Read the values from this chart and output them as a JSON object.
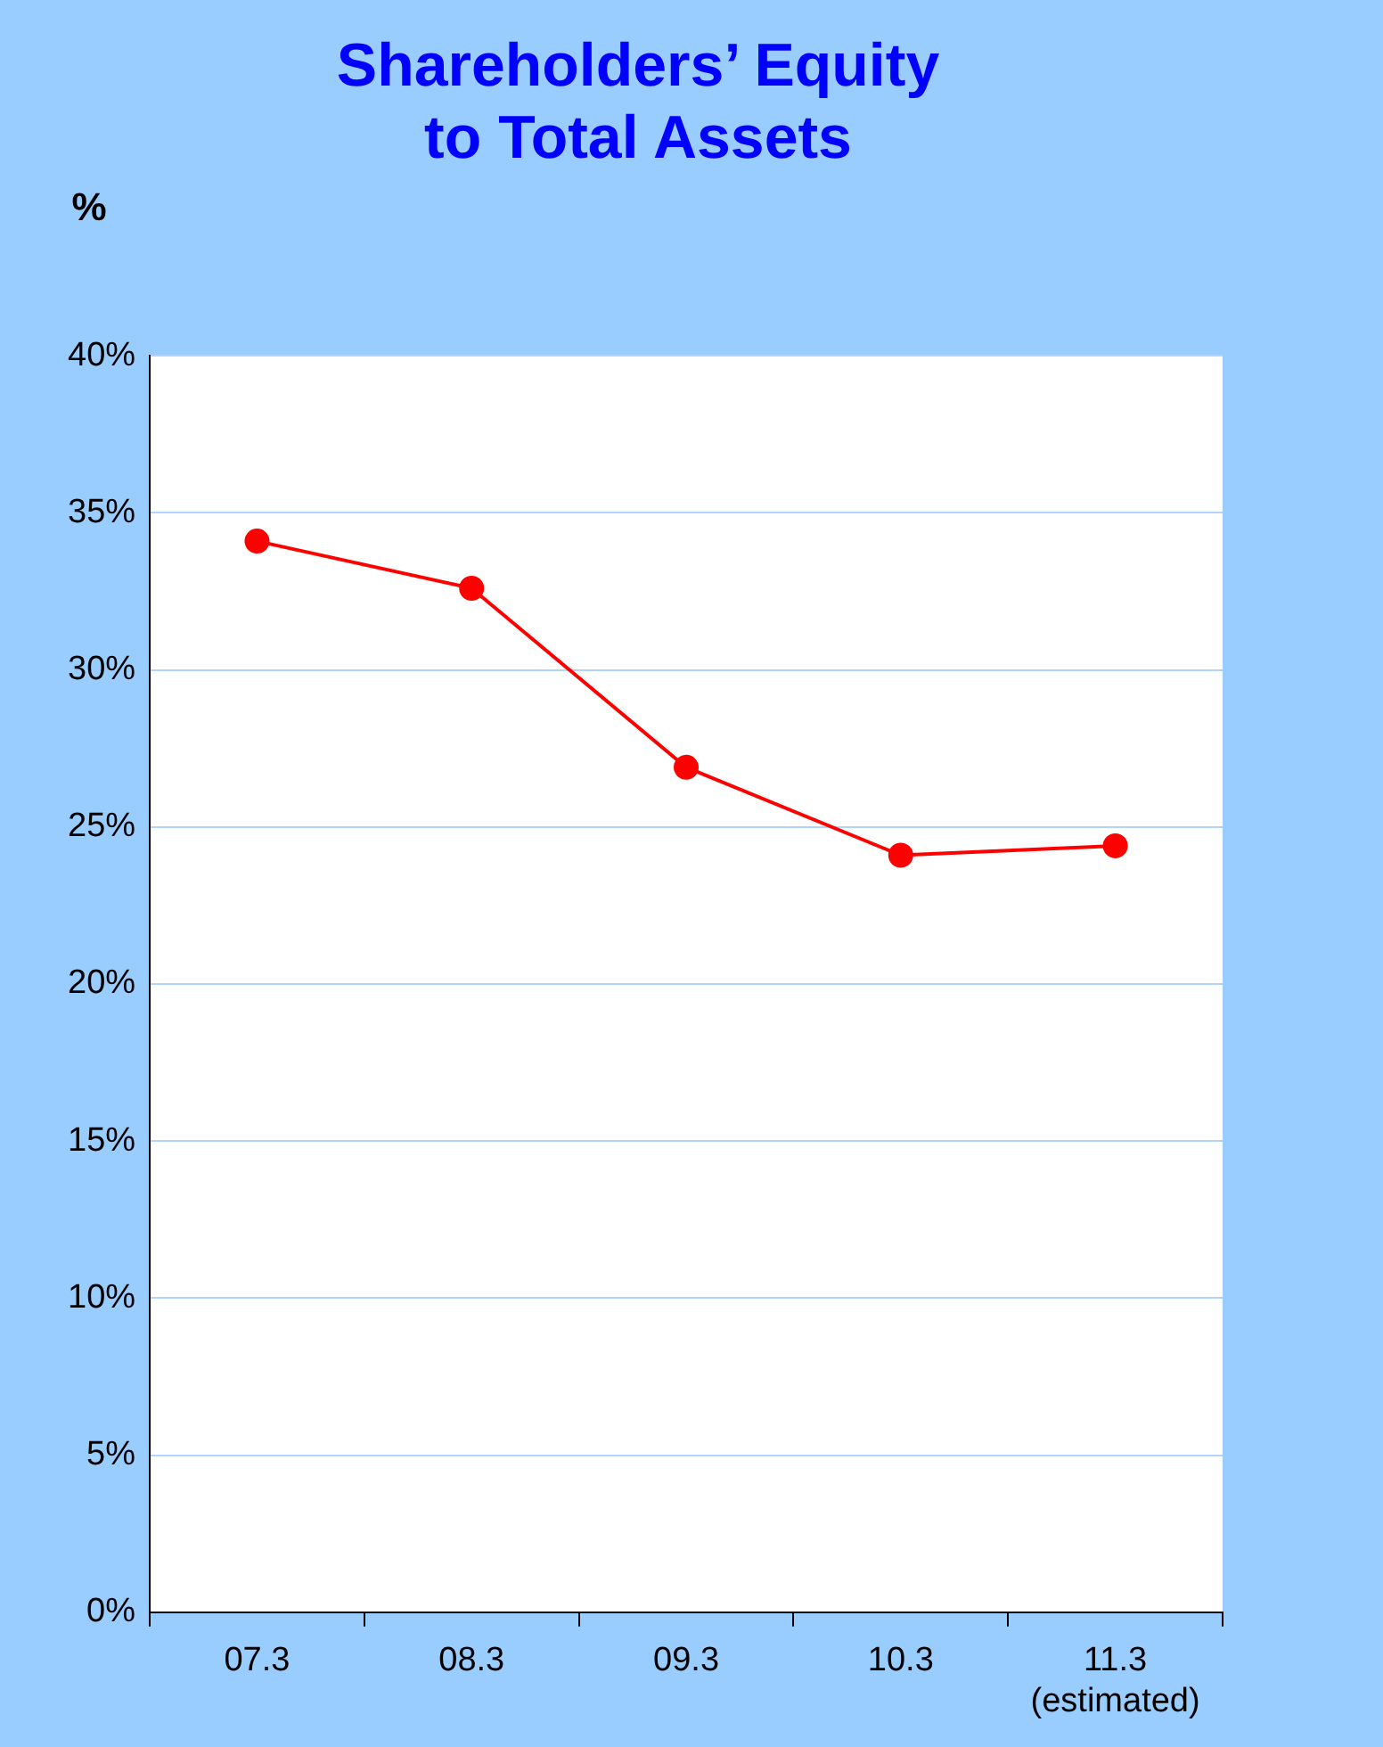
{
  "chart_data": {
    "type": "line",
    "title": "Shareholders’ Equity\nto Total Assets",
    "ylabel": "%",
    "categories": [
      "07.3",
      "08.3",
      "09.3",
      "10.3",
      "11.3\n(estimated)"
    ],
    "series": [
      {
        "color": "#ff0000",
        "values": [
          34.1,
          32.6,
          26.9,
          24.1,
          24.4
        ]
      }
    ],
    "ylim": [
      0,
      40
    ],
    "yticks": [
      {
        "value": 0,
        "label": "0%"
      },
      {
        "value": 5,
        "label": "5%"
      },
      {
        "value": 10,
        "label": "10%"
      },
      {
        "value": 15,
        "label": "15%"
      },
      {
        "value": 20,
        "label": "20%"
      },
      {
        "value": 25,
        "label": "25%"
      },
      {
        "value": 30,
        "label": "30%"
      },
      {
        "value": 35,
        "label": "35%"
      },
      {
        "value": 40,
        "label": "40%"
      }
    ],
    "grid": "y",
    "legend": false,
    "marker": "circle",
    "line_style": "solid"
  }
}
